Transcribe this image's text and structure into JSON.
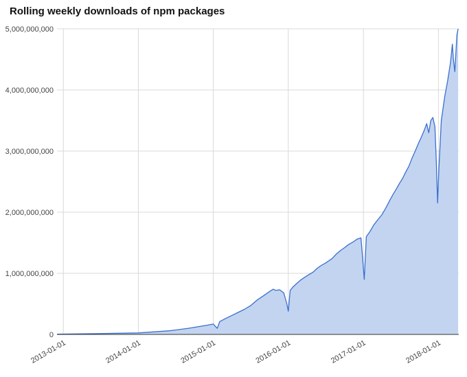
{
  "chart_data": {
    "type": "area",
    "title": "Rolling weekly downloads of npm packages",
    "xlabel": "",
    "ylabel": "",
    "x_tick_labels": [
      "2013-01-01",
      "2014-01-01",
      "2015-01-01",
      "2016-01-01",
      "2017-01-01",
      "2018-01-01"
    ],
    "y_tick_labels": [
      "0",
      "1,000,000,000",
      "2,000,000,000",
      "3,000,000,000",
      "4,000,000,000",
      "5,000,000,000"
    ],
    "ylim": [
      0,
      5000000000
    ],
    "xlim": [
      "2012-12-01",
      "2018-04-10"
    ],
    "grid": true,
    "legend": "none",
    "colors": {
      "line": "#3a6fcd",
      "fill": "#c3d4f1",
      "grid": "#d9d9d9",
      "axis": "#333333"
    },
    "series": [
      {
        "x": [
          "2012-12-01",
          "2013-06-01",
          "2014-01-01",
          "2014-06-01",
          "2014-09-01",
          "2014-12-01",
          "2015-01-01",
          "2015-01-20",
          "2015-02-01",
          "2015-03-01",
          "2015-04-01",
          "2015-05-01",
          "2015-06-01",
          "2015-07-01",
          "2015-08-01",
          "2015-09-01",
          "2015-10-01",
          "2015-10-20",
          "2015-11-01",
          "2015-11-20",
          "2015-12-10",
          "2015-12-25",
          "2016-01-01",
          "2016-01-10",
          "2016-01-25",
          "2016-02-10",
          "2016-03-01",
          "2016-04-01",
          "2016-05-01",
          "2016-05-20",
          "2016-06-10",
          "2016-07-01",
          "2016-08-01",
          "2016-08-20",
          "2016-09-10",
          "2016-10-01",
          "2016-10-20",
          "2016-11-10",
          "2016-12-01",
          "2016-12-20",
          "2016-12-28",
          "2017-01-05",
          "2017-01-15",
          "2017-02-01",
          "2017-02-20",
          "2017-03-10",
          "2017-04-01",
          "2017-04-15",
          "2017-04-25",
          "2017-05-10",
          "2017-05-25",
          "2017-06-10",
          "2017-06-25",
          "2017-07-10",
          "2017-07-25",
          "2017-08-10",
          "2017-08-25",
          "2017-09-10",
          "2017-09-25",
          "2017-10-10",
          "2017-10-25",
          "2017-11-05",
          "2017-11-15",
          "2017-11-25",
          "2017-12-05",
          "2017-12-15",
          "2017-12-22",
          "2017-12-28",
          "2018-01-03",
          "2018-01-15",
          "2018-02-01",
          "2018-02-15",
          "2018-03-01",
          "2018-03-10",
          "2018-03-15",
          "2018-03-22",
          "2018-04-01",
          "2018-04-07"
        ],
        "values": [
          5000000,
          12000000,
          25000000,
          60000000,
          100000000,
          150000000,
          170000000,
          100000000,
          210000000,
          260000000,
          310000000,
          360000000,
          410000000,
          470000000,
          560000000,
          630000000,
          700000000,
          740000000,
          720000000,
          730000000,
          680000000,
          500000000,
          380000000,
          720000000,
          780000000,
          830000000,
          890000000,
          960000000,
          1020000000,
          1080000000,
          1130000000,
          1170000000,
          1240000000,
          1310000000,
          1370000000,
          1420000000,
          1470000000,
          1510000000,
          1560000000,
          1580000000,
          1250000000,
          900000000,
          1600000000,
          1680000000,
          1790000000,
          1870000000,
          1960000000,
          2040000000,
          2100000000,
          2200000000,
          2290000000,
          2380000000,
          2470000000,
          2550000000,
          2650000000,
          2750000000,
          2880000000,
          3000000000,
          3120000000,
          3230000000,
          3350000000,
          3450000000,
          3300000000,
          3500000000,
          3550000000,
          3400000000,
          2800000000,
          2150000000,
          2700000000,
          3500000000,
          3900000000,
          4150000000,
          4450000000,
          4750000000,
          4500000000,
          4300000000,
          4900000000,
          5000000000
        ]
      }
    ]
  }
}
